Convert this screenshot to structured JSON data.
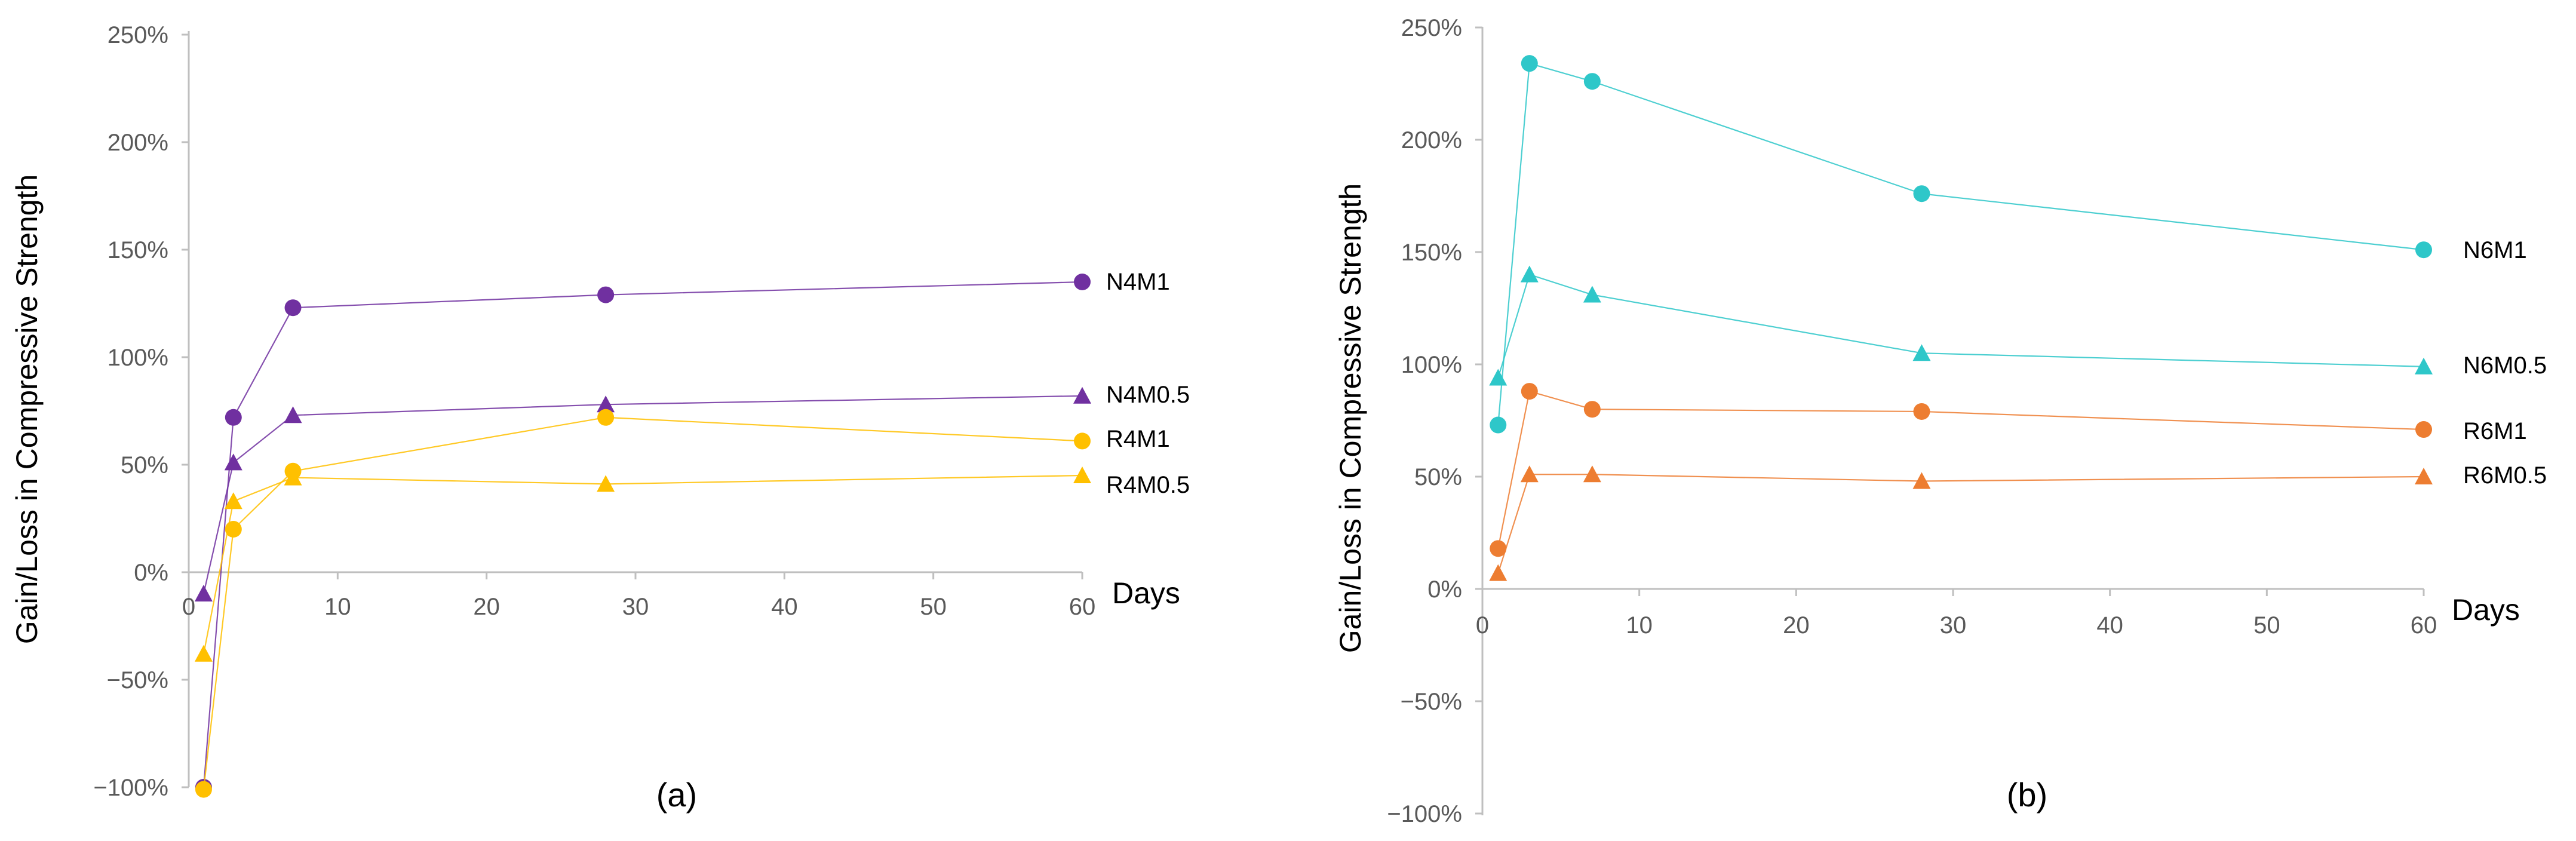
{
  "chart_data": [
    {
      "type": "line",
      "panel_label": "(a)",
      "ylabel": "Gain/Loss in Compressive Strength",
      "xlabel": "Days",
      "xlim": [
        0,
        60
      ],
      "ylim": [
        -100,
        250
      ],
      "xticks": [
        0,
        10,
        20,
        30,
        40,
        50,
        60
      ],
      "yticks": [
        -100,
        -50,
        0,
        50,
        100,
        150,
        200,
        250
      ],
      "ytick_labels": [
        "−100%",
        "−50%",
        "0%",
        "50%",
        "100%",
        "150%",
        "200%",
        "250%"
      ],
      "series": [
        {
          "name": "N4M1",
          "marker": "circle",
          "color": "#7030a0",
          "x": [
            1,
            3,
            7,
            28,
            60
          ],
          "y": [
            -100,
            72,
            123,
            129,
            135
          ]
        },
        {
          "name": "N4M0.5",
          "marker": "triangle",
          "color": "#7030a0",
          "x": [
            1,
            3,
            7,
            28,
            60
          ],
          "y": [
            -10,
            51,
            73,
            78,
            82
          ]
        },
        {
          "name": "R4M1",
          "marker": "circle",
          "color": "#ffc000",
          "x": [
            1,
            3,
            7,
            28,
            60
          ],
          "y": [
            -101,
            20,
            47,
            72,
            61
          ]
        },
        {
          "name": "R4M0.5",
          "marker": "triangle",
          "color": "#ffc000",
          "x": [
            1,
            3,
            7,
            28,
            60
          ],
          "y": [
            -38,
            33,
            44,
            41,
            45
          ]
        }
      ]
    },
    {
      "type": "line",
      "panel_label": "(b)",
      "ylabel": "Gain/Loss in Compressive Strength",
      "xlabel": "Days",
      "xlim": [
        0,
        60
      ],
      "ylim": [
        -100,
        250
      ],
      "xticks": [
        0,
        10,
        20,
        30,
        40,
        50,
        60
      ],
      "yticks": [
        -100,
        -50,
        0,
        50,
        100,
        150,
        200,
        250
      ],
      "ytick_labels": [
        "−100%",
        "−50%",
        "0%",
        "50%",
        "100%",
        "150%",
        "200%",
        "250%"
      ],
      "series": [
        {
          "name": "N6M1",
          "marker": "circle",
          "color": "#2ec7c9",
          "x": [
            1,
            3,
            7,
            28,
            60
          ],
          "y": [
            73,
            234,
            226,
            176,
            151
          ]
        },
        {
          "name": "N6M0.5",
          "marker": "triangle",
          "color": "#2ec7c9",
          "x": [
            1,
            3,
            7,
            28,
            60
          ],
          "y": [
            94,
            140,
            131,
            105,
            99
          ]
        },
        {
          "name": "R6M1",
          "marker": "circle",
          "color": "#ed7d31",
          "x": [
            1,
            3,
            7,
            28,
            60
          ],
          "y": [
            18,
            88,
            80,
            79,
            71
          ]
        },
        {
          "name": "R6M0.5",
          "marker": "triangle",
          "color": "#ed7d31",
          "x": [
            1,
            3,
            7,
            28,
            60
          ],
          "y": [
            7,
            51,
            51,
            48,
            50
          ]
        }
      ]
    }
  ]
}
